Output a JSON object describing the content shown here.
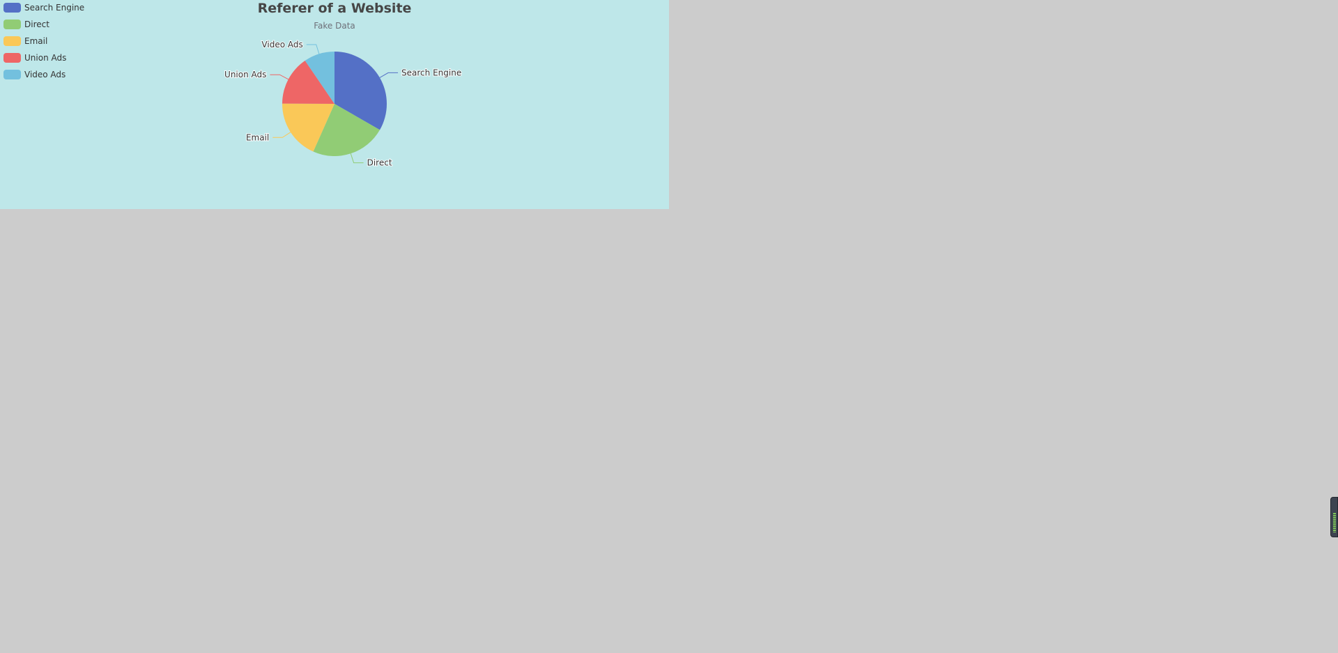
{
  "chart_data": {
    "type": "pie",
    "title": "Referer of a Website",
    "subtitle": "Fake Data",
    "legend_position": "top-left",
    "series": [
      {
        "data": [
          {
            "name": "Search Engine",
            "value": 1048,
            "color": "#5470c6"
          },
          {
            "name": "Direct",
            "value": 735,
            "color": "#91cc75"
          },
          {
            "name": "Email",
            "value": 580,
            "color": "#fac858"
          },
          {
            "name": "Union Ads",
            "value": 484,
            "color": "#ee6666"
          },
          {
            "name": "Video Ads",
            "value": 300,
            "color": "#73c0de"
          }
        ]
      }
    ]
  },
  "colors": {
    "chart_background": "#bee7e9",
    "page_background": "#cccccc"
  },
  "side_widget": {
    "icon": "audio-meter-icon"
  }
}
